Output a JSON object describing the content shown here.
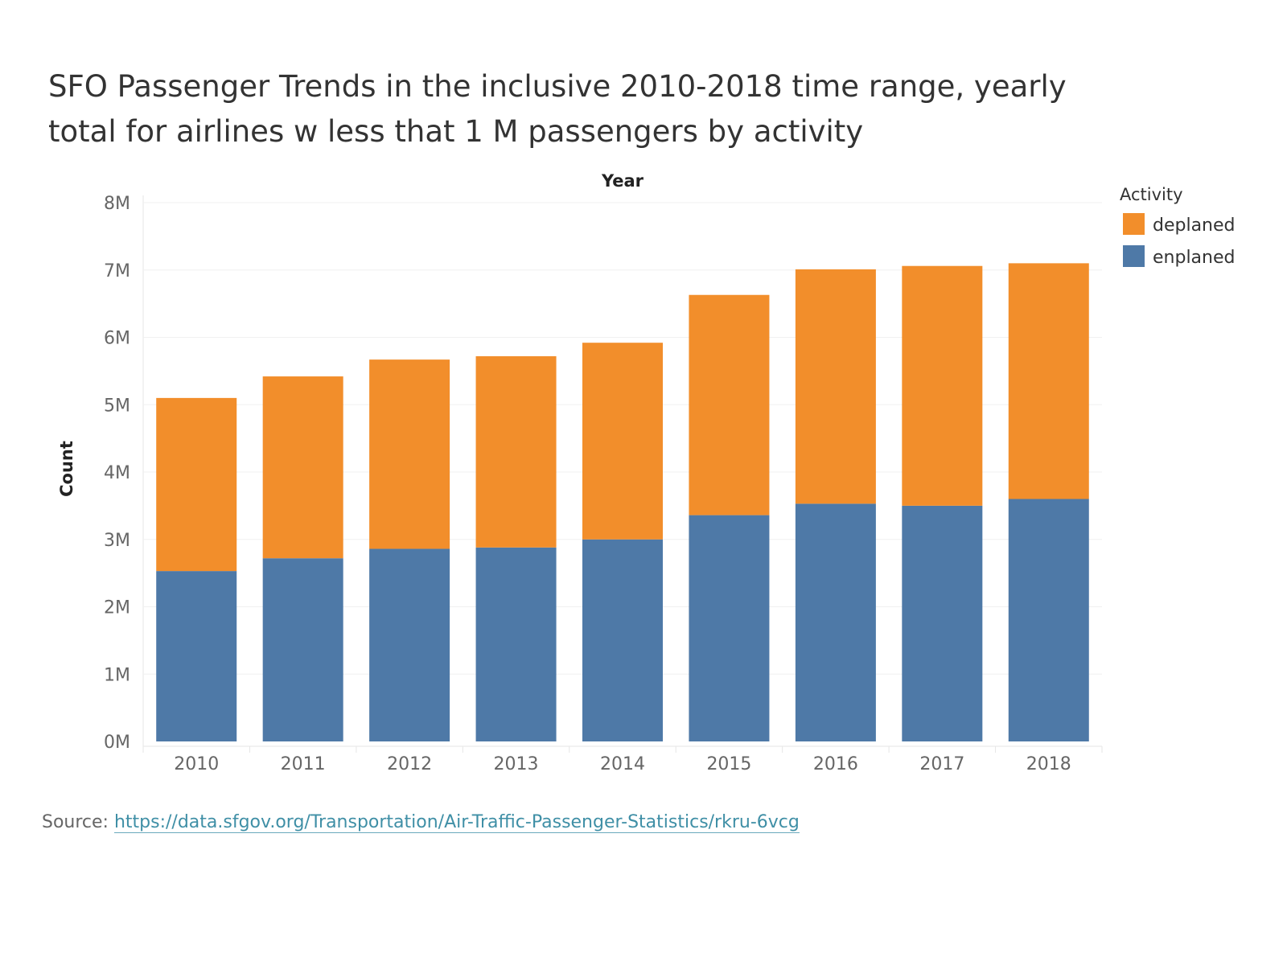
{
  "chart_data": {
    "type": "bar",
    "stacked": true,
    "title": "SFO Passenger Trends in the inclusive 2010-2018 time range, yearly total for airlines w less that 1 M passengers by activity",
    "xlabel": "Year",
    "ylabel": "Count",
    "categories": [
      "2010",
      "2011",
      "2012",
      "2013",
      "2014",
      "2015",
      "2016",
      "2017",
      "2018"
    ],
    "series": [
      {
        "name": "enplaned",
        "color": "#4e79a7",
        "values": [
          2530000,
          2720000,
          2860000,
          2880000,
          3000000,
          3360000,
          3530000,
          3500000,
          3600000
        ]
      },
      {
        "name": "deplaned",
        "color": "#f28e2b",
        "values": [
          2570000,
          2700000,
          2810000,
          2840000,
          2920000,
          3270000,
          3480000,
          3560000,
          3500000
        ]
      }
    ],
    "yticks": [
      0,
      1000000,
      2000000,
      3000000,
      4000000,
      5000000,
      6000000,
      7000000,
      8000000
    ],
    "ytick_labels": [
      "0M",
      "1M",
      "2M",
      "3M",
      "4M",
      "5M",
      "6M",
      "7M",
      "8M"
    ],
    "ylim": [
      0,
      8000000
    ],
    "grid": true,
    "legend": {
      "title": "Activity",
      "position": "top-right",
      "items": [
        {
          "label": "deplaned",
          "color": "#f28e2b"
        },
        {
          "label": "enplaned",
          "color": "#4e79a7"
        }
      ]
    }
  },
  "source": {
    "label": "Source:",
    "link_text": "https://data.sfgov.org/Transportation/Air-Traffic-Passenger-Statistics/rkru-6vcg"
  }
}
